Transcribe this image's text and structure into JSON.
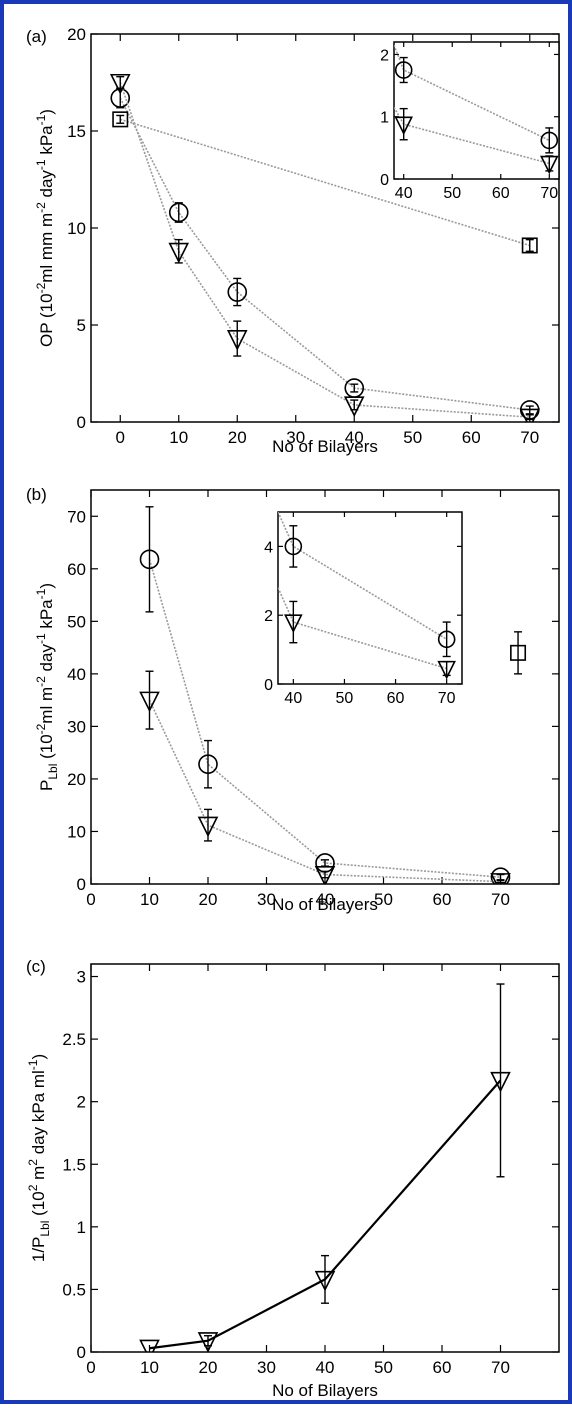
{
  "figure": {
    "panels": [
      "(a)",
      "(b)",
      "(c)"
    ],
    "colors": {
      "frame": "#1a39b8",
      "dotted_line": "#9a9a9a",
      "solid_line": "#000000",
      "marker": "#000000"
    }
  },
  "chart_data": [
    {
      "type": "line",
      "panel": "(a)",
      "xlabel": "No of Bilayers",
      "ylabel": "OP (10^-2 ml mm m^-2 day^-1 kPa^-1)",
      "ylabel_parts": {
        "prefix": "OP (10",
        "sup1": "-2",
        "mid": "ml mm m",
        "sup2": "-2",
        "mid2": " day",
        "sup3": "-1",
        "mid3": " kPa",
        "sup4": "-1",
        "suffix": ")"
      },
      "xlim": [
        -5,
        75
      ],
      "ylim": [
        0,
        20
      ],
      "xticks": [
        "0",
        "10",
        "20",
        "30",
        "40",
        "50",
        "60",
        "70"
      ],
      "yticks": [
        "0",
        "5",
        "10",
        "15",
        "20"
      ],
      "grid": false,
      "series": [
        {
          "marker": "circle",
          "line": "dotted",
          "points": [
            {
              "x": 0,
              "y": 16.7,
              "err": 0.5
            },
            {
              "x": 10,
              "y": 10.8,
              "err": 0.5
            },
            {
              "x": 20,
              "y": 6.7,
              "err": 0.7
            },
            {
              "x": 40,
              "y": 1.75,
              "err": 0.2
            },
            {
              "x": 70,
              "y": 0.62,
              "err": 0.2
            }
          ]
        },
        {
          "marker": "triangle-down",
          "line": "dotted",
          "points": [
            {
              "x": 0,
              "y": 17.5,
              "err": 0.3
            },
            {
              "x": 10,
              "y": 8.8,
              "err": 0.6
            },
            {
              "x": 20,
              "y": 4.3,
              "err": 0.9
            },
            {
              "x": 40,
              "y": 0.88,
              "err": 0.25
            },
            {
              "x": 70,
              "y": 0.25,
              "err": 0.12
            }
          ]
        },
        {
          "marker": "square",
          "line": "dotted",
          "points": [
            {
              "x": 0,
              "y": 15.6,
              "err": 0.2
            },
            {
              "x": 70,
              "y": 9.1,
              "err": 0.3
            }
          ]
        }
      ],
      "inset": {
        "xlim": [
          38,
          72
        ],
        "ylim": [
          0,
          2.2
        ],
        "xticks": [
          "40",
          "50",
          "60",
          "70"
        ],
        "yticks": [
          "0",
          "1",
          "2"
        ],
        "series": [
          {
            "marker": "circle",
            "line": "dotted",
            "points": [
              {
                "x": 38,
                "y": 2.15,
                "err": 0
              },
              {
                "x": 40,
                "y": 1.75,
                "err": 0.2
              },
              {
                "x": 70,
                "y": 0.62,
                "err": 0.2
              }
            ]
          },
          {
            "marker": "triangle-down",
            "line": "dotted",
            "points": [
              {
                "x": 38,
                "y": 1.15,
                "err": 0
              },
              {
                "x": 40,
                "y": 0.88,
                "err": 0.25
              },
              {
                "x": 70,
                "y": 0.25,
                "err": 0.12
              }
            ]
          }
        ]
      }
    },
    {
      "type": "line",
      "panel": "(b)",
      "xlabel": "No of Bilayers",
      "ylabel": "P_Lbl (10^-2 ml m^-2 day^-1 kPa^-1)",
      "ylabel_parts": {
        "prefix": "P",
        "sub": "Lbl",
        "mid0": " (10",
        "sup1": "-2",
        "mid": "ml m",
        "sup2": "-2",
        "mid2": " day",
        "sup3": "-1",
        "mid3": " kPa",
        "sup4": "-1",
        "suffix": ")"
      },
      "xlim": [
        0,
        80
      ],
      "ylim": [
        0,
        75
      ],
      "xticks": [
        "0",
        "10",
        "20",
        "30",
        "40",
        "50",
        "60",
        "70"
      ],
      "yticks": [
        "0",
        "10",
        "20",
        "30",
        "40",
        "50",
        "60",
        "70"
      ],
      "grid": false,
      "series": [
        {
          "marker": "circle",
          "line": "dotted",
          "points": [
            {
              "x": 10,
              "y": 61.8,
              "err": 10
            },
            {
              "x": 20,
              "y": 22.8,
              "err": 4.5
            },
            {
              "x": 40,
              "y": 4,
              "err": 0.6
            },
            {
              "x": 70,
              "y": 1.3,
              "err": 0.5
            }
          ]
        },
        {
          "marker": "triangle-down",
          "line": "dotted",
          "points": [
            {
              "x": 10,
              "y": 35,
              "err": 5.5
            },
            {
              "x": 20,
              "y": 11.2,
              "err": 3
            },
            {
              "x": 40,
              "y": 1.8,
              "err": 0.6
            },
            {
              "x": 70,
              "y": 0.45,
              "err": 0.2
            }
          ]
        },
        {
          "marker": "square",
          "line": "none",
          "points": [
            {
              "x": 73,
              "y": 44,
              "err": 4
            }
          ]
        }
      ],
      "inset": {
        "xlim": [
          37,
          73
        ],
        "ylim": [
          0,
          5
        ],
        "xticks": [
          "40",
          "50",
          "60",
          "70"
        ],
        "yticks": [
          "0",
          "2",
          "4"
        ],
        "series": [
          {
            "marker": "circle",
            "line": "dotted",
            "points": [
              {
                "x": 37,
                "y": 5,
                "err": 0
              },
              {
                "x": 40,
                "y": 4,
                "err": 0.6
              },
              {
                "x": 70,
                "y": 1.3,
                "err": 0.5
              }
            ]
          },
          {
            "marker": "triangle-down",
            "line": "dotted",
            "points": [
              {
                "x": 37,
                "y": 2.8,
                "err": 0
              },
              {
                "x": 40,
                "y": 1.8,
                "err": 0.6
              },
              {
                "x": 70,
                "y": 0.45,
                "err": 0.2
              }
            ]
          }
        ]
      }
    },
    {
      "type": "line",
      "panel": "(c)",
      "xlabel": "No of Bilayers",
      "ylabel": "1/P_Lbl (10^2 m^2 day kPa ml^-1)",
      "ylabel_parts": {
        "prefix": "1/P",
        "sub": "Lbl",
        "mid0": " (10",
        "sup1": "2",
        "mid": " m",
        "sup2": "2",
        "mid2": " day kPa ml",
        "sup3": "-1",
        "suffix": ")"
      },
      "xlim": [
        0,
        80
      ],
      "ylim": [
        0,
        3.1
      ],
      "xticks": [
        "0",
        "10",
        "20",
        "30",
        "40",
        "50",
        "60",
        "70"
      ],
      "yticks": [
        "0",
        "0.5",
        "1",
        "1.5",
        "2",
        "2.5",
        "3"
      ],
      "grid": false,
      "series": [
        {
          "marker": "triangle-down",
          "line": "solid",
          "points": [
            {
              "x": 10,
              "y": 0.03,
              "err": 0
            },
            {
              "x": 20,
              "y": 0.09,
              "err": 0.04
            },
            {
              "x": 40,
              "y": 0.58,
              "err": 0.19
            },
            {
              "x": 70,
              "y": 2.17,
              "err": 0.77
            }
          ]
        }
      ]
    }
  ]
}
